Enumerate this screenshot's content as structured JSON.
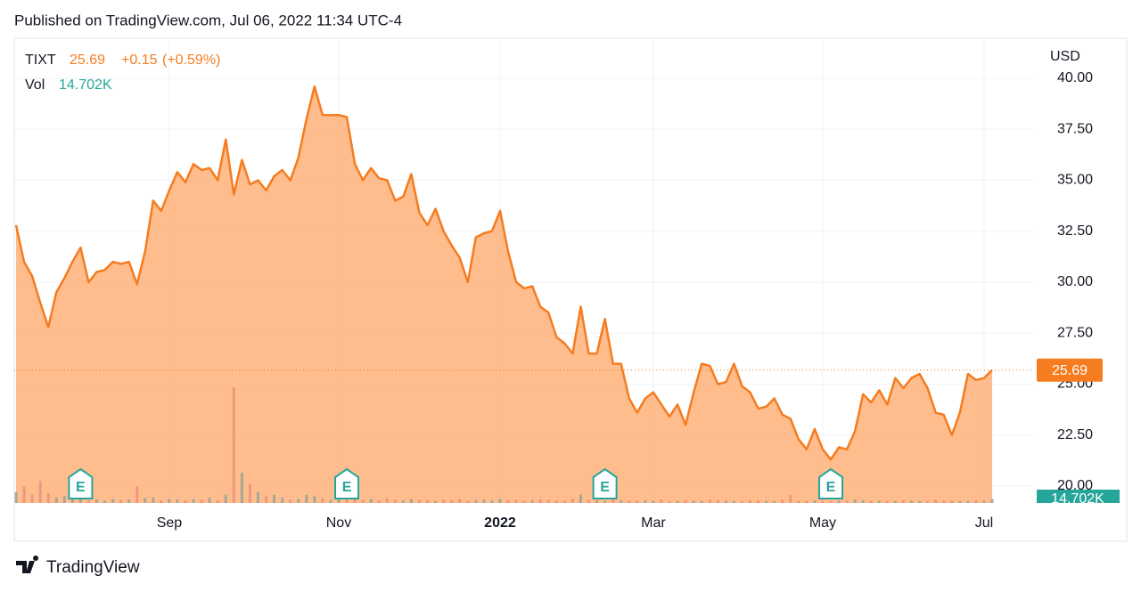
{
  "published": "Published on TradingView.com, Jul 06, 2022 11:34 UTC-4",
  "brand": "TradingView",
  "chart_data": {
    "type": "area",
    "currency": "USD",
    "legend": {
      "symbol": "TIXT",
      "price": "25.69",
      "change": "+0.15",
      "change_pct": "(+0.59%)"
    },
    "categories": [
      null,
      null,
      null,
      null,
      null,
      null,
      null,
      null,
      null,
      null,
      null,
      null,
      null,
      null,
      null,
      null,
      null,
      null,
      null,
      "Sep",
      null,
      null,
      null,
      null,
      null,
      null,
      null,
      null,
      null,
      null,
      null,
      null,
      null,
      null,
      null,
      null,
      null,
      null,
      null,
      null,
      "Nov",
      null,
      null,
      null,
      null,
      null,
      null,
      null,
      null,
      null,
      null,
      null,
      null,
      null,
      null,
      null,
      null,
      null,
      null,
      null,
      "2022",
      null,
      null,
      null,
      null,
      null,
      null,
      null,
      null,
      null,
      null,
      null,
      null,
      null,
      null,
      null,
      null,
      null,
      null,
      "Mar",
      null,
      null,
      null,
      null,
      null,
      null,
      null,
      null,
      null,
      null,
      null,
      null,
      null,
      null,
      null,
      null,
      null,
      null,
      null,
      null,
      "May",
      null,
      null,
      null,
      null,
      null,
      null,
      null,
      null,
      null,
      null,
      null,
      null,
      null,
      null,
      null,
      null,
      null,
      null,
      null,
      "Jul",
      null
    ],
    "series": [
      {
        "name": "TIXT",
        "color": "#f57c1f",
        "fill": "#ffb27a",
        "values": [
          32.8,
          31.0,
          30.3,
          29.0,
          27.8,
          29.5,
          30.2,
          31.0,
          31.7,
          30.0,
          30.5,
          30.6,
          31.0,
          30.9,
          31.0,
          29.9,
          31.5,
          34.0,
          33.5,
          34.5,
          35.4,
          34.9,
          35.8,
          35.5,
          35.6,
          35.0,
          37.0,
          34.3,
          36.0,
          34.8,
          35.0,
          34.5,
          35.2,
          35.5,
          35.0,
          36.1,
          38.0,
          39.6,
          38.2,
          38.2,
          38.2,
          38.1,
          35.8,
          35.0,
          35.6,
          35.1,
          35.0,
          34.0,
          34.2,
          35.3,
          33.4,
          32.8,
          33.6,
          32.5,
          31.8,
          31.2,
          30.0,
          32.2,
          32.4,
          32.5,
          33.5,
          31.5,
          30.0,
          29.7,
          29.8,
          28.8,
          28.5,
          27.3,
          27.0,
          26.5,
          28.8,
          26.5,
          26.5,
          28.2,
          26.0,
          26.0,
          24.3,
          23.6,
          24.3,
          24.6,
          24.0,
          23.4,
          24.0,
          23.0,
          24.6,
          26.0,
          25.9,
          25.0,
          25.1,
          26.0,
          24.9,
          24.6,
          23.8,
          23.9,
          24.3,
          23.5,
          23.3,
          22.3,
          21.8,
          22.8,
          21.8,
          21.3,
          21.9,
          21.8,
          22.7,
          24.5,
          24.1,
          24.7,
          24.0,
          25.3,
          24.8,
          25.3,
          25.5,
          24.8,
          23.6,
          23.5,
          22.5,
          23.6,
          25.5,
          25.2,
          25.3,
          25.69
        ]
      }
    ],
    "volume": {
      "name": "Vol",
      "last_label": "14.702K",
      "up_color": "#8fa39a",
      "down_color": "#e98f7a",
      "values": [
        40,
        60,
        30,
        80,
        35,
        20,
        25,
        15,
        30,
        10,
        12,
        8,
        15,
        10,
        12,
        60,
        18,
        20,
        10,
        15,
        12,
        10,
        14,
        12,
        18,
        10,
        30,
        420,
        110,
        70,
        40,
        25,
        30,
        20,
        12,
        15,
        30,
        25,
        18,
        12,
        15,
        35,
        20,
        12,
        15,
        10,
        18,
        12,
        10,
        15,
        12,
        10,
        8,
        12,
        10,
        14,
        8,
        10,
        12,
        9,
        15,
        10,
        12,
        8,
        10,
        14,
        12,
        9,
        8,
        15,
        30,
        12,
        10,
        8,
        12,
        10,
        8,
        9,
        10,
        8,
        12,
        7,
        8,
        10,
        9,
        8,
        12,
        10,
        9,
        8,
        7,
        10,
        9,
        8,
        7,
        12,
        30,
        9,
        8,
        10,
        8,
        7,
        9,
        8,
        12,
        10,
        8,
        9,
        7,
        8,
        10,
        9,
        8,
        7,
        12,
        8,
        9,
        7,
        8,
        10,
        9,
        14.702
      ]
    },
    "earnings": [
      {
        "label": "E",
        "at": 8
      },
      {
        "label": "E",
        "at": 41
      },
      {
        "label": "E",
        "at": 73
      },
      {
        "label": "E",
        "at": 101
      }
    ],
    "ylim": [
      19.17,
      41.79
    ],
    "yticks": [
      {
        "value": 20,
        "label": "20.00"
      },
      {
        "value": 22.5,
        "label": "22.50"
      },
      {
        "value": 25,
        "label": "25.00"
      },
      {
        "value": 27.5,
        "label": "27.50"
      },
      {
        "value": 30,
        "label": "30.00"
      },
      {
        "value": 32.5,
        "label": "32.50"
      },
      {
        "value": 35,
        "label": "35.00"
      },
      {
        "value": 37.5,
        "label": "37.50"
      },
      {
        "value": 40,
        "label": "40.00"
      }
    ],
    "grid": true
  }
}
